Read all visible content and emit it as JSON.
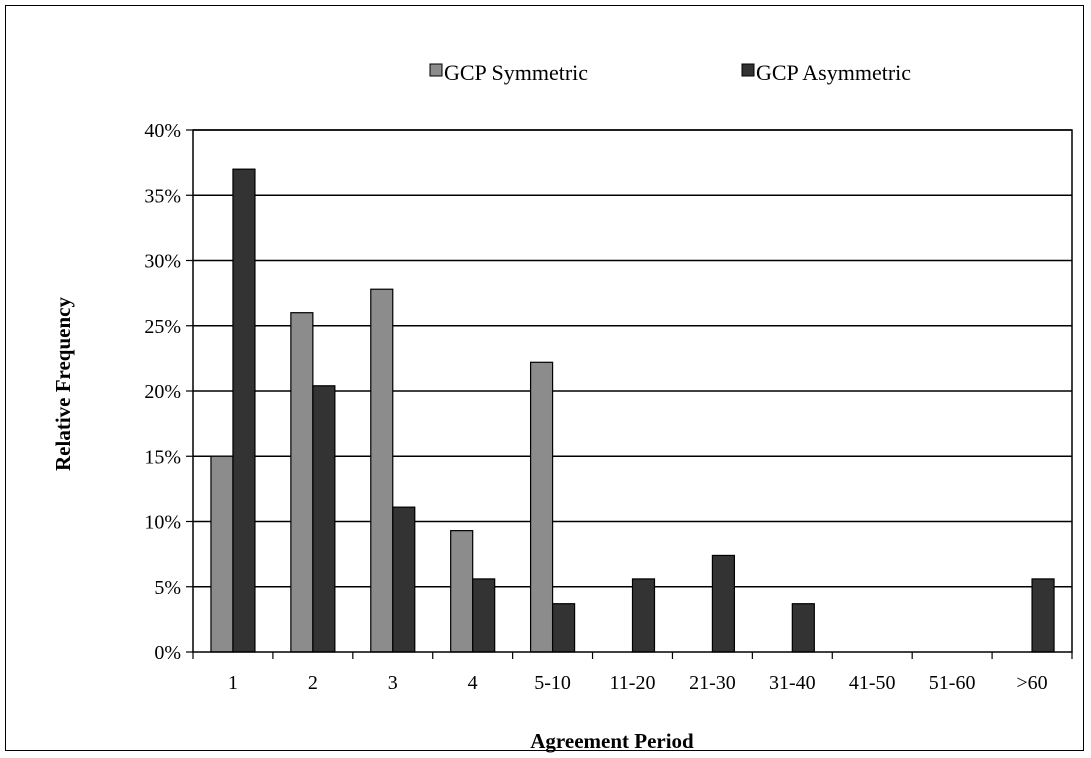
{
  "chart_data": {
    "type": "bar",
    "title": "",
    "xlabel": "Agreement Period",
    "ylabel": "Relative Frequency",
    "categories": [
      "1",
      "2",
      "3",
      "4",
      "5-10",
      "11-20",
      "21-30",
      "31-40",
      "41-50",
      "51-60",
      ">60"
    ],
    "series": [
      {
        "name": "GCP Symmetric",
        "color": "#8c8c8c",
        "values": [
          15.0,
          26.0,
          27.8,
          9.3,
          22.2,
          0,
          0,
          0,
          0,
          0,
          0
        ]
      },
      {
        "name": "GCP Asymmetric",
        "color": "#333333",
        "values": [
          37.0,
          20.4,
          11.1,
          5.6,
          3.7,
          5.6,
          7.4,
          3.7,
          0,
          0,
          5.6
        ]
      }
    ],
    "ylim": [
      0,
      40
    ],
    "yticks": [
      0,
      5,
      10,
      15,
      20,
      25,
      30,
      35,
      40
    ],
    "ytick_labels": [
      "0%",
      "5%",
      "10%",
      "15%",
      "20%",
      "25%",
      "30%",
      "35%",
      "40%"
    ],
    "grid": true,
    "legend": "top-center"
  }
}
